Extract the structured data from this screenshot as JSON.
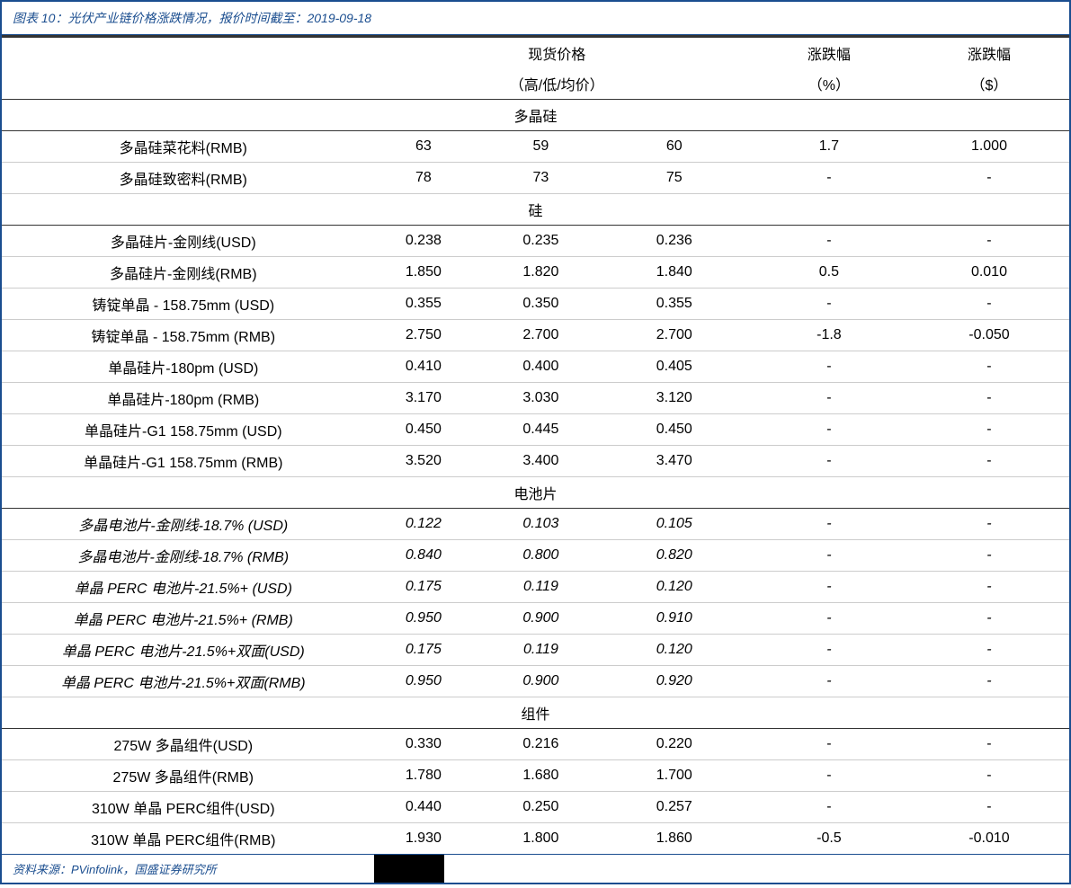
{
  "title": "图表 10：光伏产业链价格涨跌情况，报价时间截至：2019-09-18",
  "source": "资料来源：PVinfolink，国盛证券研究所",
  "headers": {
    "spot_price": "现货价格",
    "spot_sub": "（高/低/均价）",
    "chg_pct": "涨跌幅",
    "chg_pct_sub": "（%）",
    "chg_dollar": "涨跌幅",
    "chg_dollar_sub": "（$）"
  },
  "sections": [
    {
      "name": "多晶硅",
      "rows": [
        {
          "name": "多晶硅菜花料(RMB)",
          "high": "63",
          "low": "59",
          "avg": "60",
          "pct": "1.7",
          "dollar": "1.000",
          "italic": false
        },
        {
          "name": "多晶硅致密料(RMB)",
          "high": "78",
          "low": "73",
          "avg": "75",
          "pct": "-",
          "dollar": "-",
          "italic": false
        }
      ]
    },
    {
      "name": "硅",
      "rows": [
        {
          "name": "多晶硅片-金刚线(USD)",
          "high": "0.238",
          "low": "0.235",
          "avg": "0.236",
          "pct": "-",
          "dollar": "-",
          "italic": false
        },
        {
          "name": "多晶硅片-金刚线(RMB)",
          "high": "1.850",
          "low": "1.820",
          "avg": "1.840",
          "pct": "0.5",
          "dollar": "0.010",
          "italic": false
        },
        {
          "name": "铸锭单晶  - 158.75mm (USD)",
          "high": "0.355",
          "low": "0.350",
          "avg": "0.355",
          "pct": "-",
          "dollar": "-",
          "italic": false
        },
        {
          "name": "铸锭单晶  - 158.75mm (RMB)",
          "high": "2.750",
          "low": "2.700",
          "avg": "2.700",
          "pct": "-1.8",
          "dollar": "-0.050",
          "italic": false
        },
        {
          "name": "单晶硅片-180pm (USD)",
          "high": "0.410",
          "low": "0.400",
          "avg": "0.405",
          "pct": "-",
          "dollar": "-",
          "italic": false
        },
        {
          "name": "单晶硅片-180pm (RMB)",
          "high": "3.170",
          "low": "3.030",
          "avg": "3.120",
          "pct": "-",
          "dollar": "-",
          "italic": false
        },
        {
          "name": "单晶硅片-G1 158.75mm (USD)",
          "high": "0.450",
          "low": "0.445",
          "avg": "0.450",
          "pct": "-",
          "dollar": "-",
          "italic": false
        },
        {
          "name": "单晶硅片-G1 158.75mm (RMB)",
          "high": "3.520",
          "low": "3.400",
          "avg": "3.470",
          "pct": "-",
          "dollar": "-",
          "italic": false
        }
      ]
    },
    {
      "name": "电池片",
      "rows": [
        {
          "name": "多晶电池片-金刚线-18.7% (USD)",
          "high": "0.122",
          "low": "0.103",
          "avg": "0.105",
          "pct": "-",
          "dollar": "-",
          "italic": true
        },
        {
          "name": "多晶电池片-金刚线-18.7% (RMB)",
          "high": "0.840",
          "low": "0.800",
          "avg": "0.820",
          "pct": "-",
          "dollar": "-",
          "italic": true
        },
        {
          "name": "单晶 PERC 电池片-21.5%+ (USD)",
          "high": "0.175",
          "low": "0.119",
          "avg": "0.120",
          "pct": "-",
          "dollar": "-",
          "italic": true
        },
        {
          "name": "单晶 PERC 电池片-21.5%+ (RMB)",
          "high": "0.950",
          "low": "0.900",
          "avg": "0.910",
          "pct": "-",
          "dollar": "-",
          "italic": true
        },
        {
          "name": "单晶 PERC 电池片-21.5%+双面(USD)",
          "high": "0.175",
          "low": "0.119",
          "avg": "0.120",
          "pct": "-",
          "dollar": "-",
          "italic": true
        },
        {
          "name": "单晶 PERC 电池片-21.5%+双面(RMB)",
          "high": "0.950",
          "low": "0.900",
          "avg": "0.920",
          "pct": "-",
          "dollar": "-",
          "italic": true
        }
      ]
    },
    {
      "name": "组件",
      "rows": [
        {
          "name": "275W 多晶组件(USD)",
          "high": "0.330",
          "low": "0.216",
          "avg": "0.220",
          "pct": "-",
          "dollar": "-",
          "italic": false
        },
        {
          "name": "275W 多晶组件(RMB)",
          "high": "1.780",
          "low": "1.680",
          "avg": "1.700",
          "pct": "-",
          "dollar": "-",
          "italic": false
        },
        {
          "name": "310W 单晶 PERC组件(USD)",
          "high": "0.440",
          "low": "0.250",
          "avg": "0.257",
          "pct": "-",
          "dollar": "-",
          "italic": false
        },
        {
          "name": "310W 单晶 PERC组件(RMB)",
          "high": "1.930",
          "low": "1.800",
          "avg": "1.860",
          "pct": "-0.5",
          "dollar": "-0.010",
          "italic": false
        }
      ]
    }
  ],
  "colors": {
    "brand": "#1a4d8f",
    "border_dark": "#333333",
    "border_light": "#cccccc",
    "bg": "#ffffff"
  }
}
